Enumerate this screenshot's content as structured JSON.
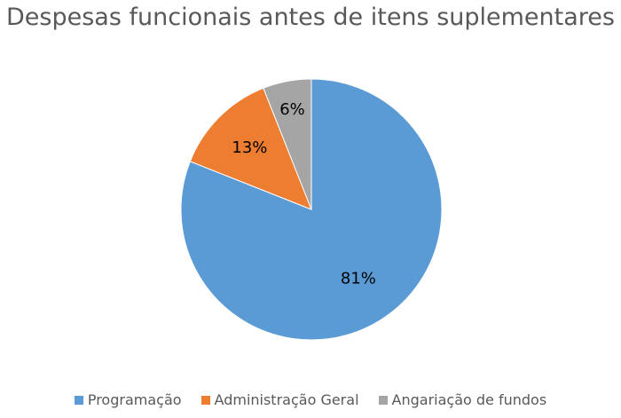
{
  "chart_data": {
    "type": "pie",
    "title": "Despesas funcionais antes de itens suplementares",
    "categories": [
      "Programação",
      "Administração Geral",
      "Angariação de fundos"
    ],
    "values": [
      81,
      13,
      6
    ],
    "data_labels": [
      "81%",
      "13%",
      "6%"
    ],
    "colors": [
      "#5B9BD5",
      "#ED7D31",
      "#A5A5A5"
    ],
    "legend_position": "bottom",
    "start_angle": "12 o'clock, clockwise"
  }
}
